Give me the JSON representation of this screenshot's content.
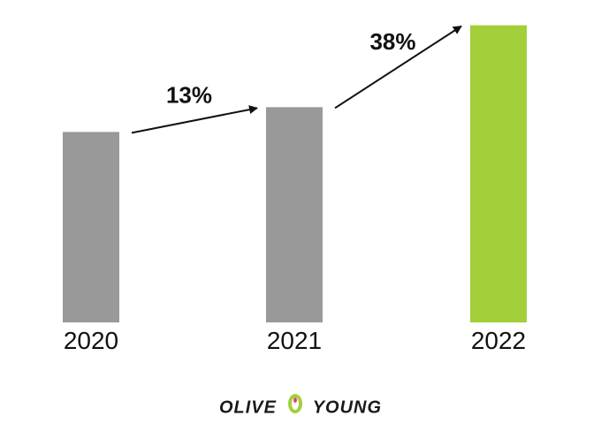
{
  "chart_data": {
    "type": "bar",
    "categories": [
      "2020",
      "2021",
      "2022"
    ],
    "values": [
      100,
      113,
      156
    ],
    "ylim": [
      0,
      160
    ],
    "grid": false,
    "bar_colors": [
      "#999999",
      "#999999",
      "#a3cf3a"
    ],
    "annotations": [
      {
        "from": "2020",
        "to": "2021",
        "text": "13%"
      },
      {
        "from": "2021",
        "to": "2022",
        "text": "38%"
      }
    ]
  },
  "logo": {
    "left_text": "OLIVE",
    "right_text": "YOUNG",
    "icon": "olive-icon",
    "colors": {
      "green": "#a3cf3a",
      "pink": "#e73b77"
    }
  }
}
